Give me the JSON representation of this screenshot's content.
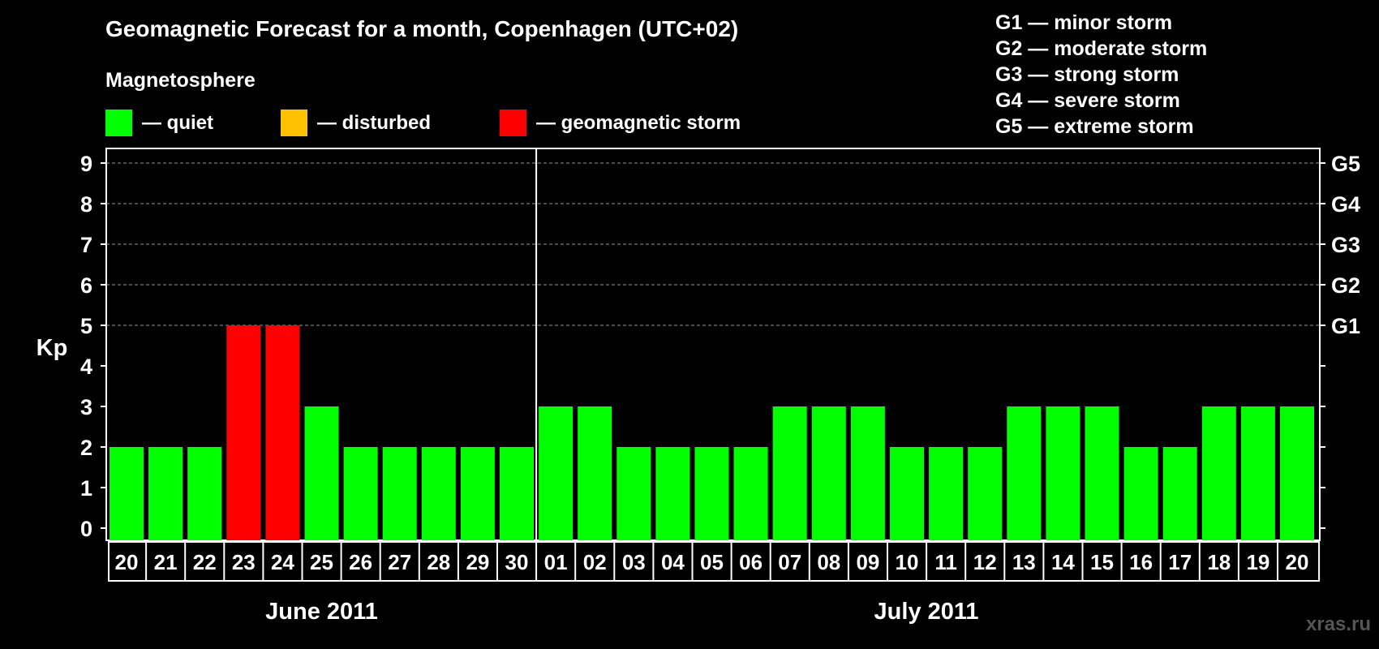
{
  "header": {
    "title": "Geomagnetic Forecast for a month, Copenhagen (UTC+02)",
    "section_label": "Magnetosphere"
  },
  "legend": [
    {
      "label": "— quiet",
      "color": "#00ff00"
    },
    {
      "label": "— disturbed",
      "color": "#ffc000"
    },
    {
      "label": "— geomagnetic storm",
      "color": "#ff0000"
    }
  ],
  "storm_levels": [
    "G1 — minor storm",
    "G2 — moderate storm",
    "G3 — strong storm",
    "G4 — severe storm",
    "G5 — extreme storm"
  ],
  "watermark": "xras.ru",
  "chart_data": {
    "type": "bar",
    "ylabel": "Kp",
    "ylim": [
      0,
      9
    ],
    "yticks": [
      0,
      1,
      2,
      3,
      4,
      5,
      6,
      7,
      8,
      9
    ],
    "right_ticks": [
      {
        "value": 5,
        "label": "G1"
      },
      {
        "value": 6,
        "label": "G2"
      },
      {
        "value": 7,
        "label": "G3"
      },
      {
        "value": 8,
        "label": "G4"
      },
      {
        "value": 9,
        "label": "G5"
      }
    ],
    "grid": "dashed at 5-9",
    "categories": [
      "20",
      "21",
      "22",
      "23",
      "24",
      "25",
      "26",
      "27",
      "28",
      "29",
      "30",
      "01",
      "02",
      "03",
      "04",
      "05",
      "06",
      "07",
      "08",
      "09",
      "10",
      "11",
      "12",
      "13",
      "14",
      "15",
      "16",
      "17",
      "18",
      "19",
      "20"
    ],
    "values": [
      2,
      2,
      2,
      5,
      5,
      3,
      2,
      2,
      2,
      2,
      2,
      3,
      3,
      2,
      2,
      2,
      2,
      3,
      3,
      3,
      2,
      2,
      2,
      3,
      3,
      3,
      2,
      2,
      3,
      3,
      3
    ],
    "colors": [
      "#00ff00",
      "#00ff00",
      "#00ff00",
      "#ff0000",
      "#ff0000",
      "#00ff00",
      "#00ff00",
      "#00ff00",
      "#00ff00",
      "#00ff00",
      "#00ff00",
      "#00ff00",
      "#00ff00",
      "#00ff00",
      "#00ff00",
      "#00ff00",
      "#00ff00",
      "#00ff00",
      "#00ff00",
      "#00ff00",
      "#00ff00",
      "#00ff00",
      "#00ff00",
      "#00ff00",
      "#00ff00",
      "#00ff00",
      "#00ff00",
      "#00ff00",
      "#00ff00",
      "#00ff00",
      "#00ff00"
    ],
    "months": [
      {
        "label": "June 2011",
        "from": 0,
        "to": 10
      },
      {
        "label": "July 2011",
        "from": 11,
        "to": 30
      }
    ]
  }
}
